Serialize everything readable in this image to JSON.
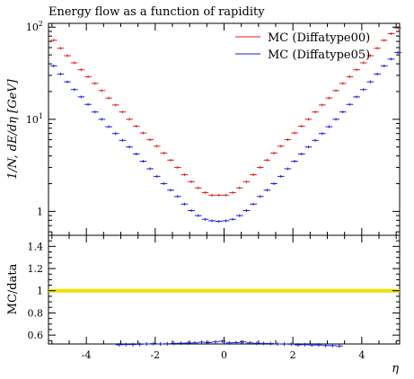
{
  "chart_data": [
    {
      "type": "scatter",
      "title": "Energy flow as a function of rapidity",
      "ylabel": "1/N, dE/dη [GeV]",
      "xlabel": "",
      "yscale": "log",
      "ylim": [
        0.55,
        110
      ],
      "xlim": [
        -5.1,
        5.1
      ],
      "ytick_labels": [
        {
          "base": "10",
          "exp": "2",
          "value": 100
        },
        {
          "base": "10",
          "exp": "1",
          "value": 10
        },
        {
          "base": "1",
          "exp": "",
          "value": 1
        }
      ],
      "legend_position": "top-right",
      "grid": false,
      "series": [
        {
          "name": "MC (Diffatype00)",
          "color": "#e41a1c",
          "x": [
            -4.95,
            -4.75,
            -4.55,
            -4.35,
            -4.15,
            -3.95,
            -3.75,
            -3.55,
            -3.35,
            -3.15,
            -2.95,
            -2.75,
            -2.55,
            -2.35,
            -2.15,
            -1.95,
            -1.75,
            -1.55,
            -1.35,
            -1.15,
            -0.95,
            -0.75,
            -0.55,
            -0.35,
            -0.15,
            0.05,
            0.25,
            0.45,
            0.65,
            0.85,
            1.05,
            1.25,
            1.45,
            1.65,
            1.85,
            2.05,
            2.25,
            2.45,
            2.65,
            2.85,
            3.05,
            3.25,
            3.45,
            3.65,
            3.85,
            4.05,
            4.25,
            4.45,
            4.65,
            4.85,
            5.05
          ],
          "values": [
            72,
            59,
            49,
            41,
            34.5,
            29,
            24.5,
            20.5,
            17,
            14.3,
            12,
            10,
            8.4,
            7.1,
            6,
            5.1,
            4.3,
            3.6,
            3.0,
            2.5,
            2.1,
            1.8,
            1.6,
            1.5,
            1.5,
            1.5,
            1.6,
            1.8,
            2.1,
            2.5,
            3.0,
            3.6,
            4.3,
            5.1,
            6,
            7.1,
            8.4,
            10,
            12,
            14.3,
            17,
            20.5,
            24.5,
            29,
            34.5,
            41,
            49,
            59,
            72,
            85,
            98
          ]
        },
        {
          "name": "MC (Diffatype05)",
          "color": "#1a1ae0",
          "x": [
            -4.95,
            -4.75,
            -4.55,
            -4.35,
            -4.15,
            -3.95,
            -3.75,
            -3.55,
            -3.35,
            -3.15,
            -2.95,
            -2.75,
            -2.55,
            -2.35,
            -2.15,
            -1.95,
            -1.75,
            -1.55,
            -1.35,
            -1.15,
            -0.95,
            -0.75,
            -0.55,
            -0.35,
            -0.15,
            0.05,
            0.25,
            0.45,
            0.65,
            0.85,
            1.05,
            1.25,
            1.45,
            1.65,
            1.85,
            2.05,
            2.25,
            2.45,
            2.65,
            2.85,
            3.05,
            3.25,
            3.45,
            3.65,
            3.85,
            4.05,
            4.25,
            4.45,
            4.65,
            4.85,
            5.05
          ],
          "values": [
            38,
            31,
            25.5,
            21,
            17.5,
            14.5,
            12,
            10,
            8.3,
            7,
            5.9,
            5,
            4.2,
            3.5,
            2.9,
            2.4,
            2.0,
            1.7,
            1.45,
            1.2,
            1.02,
            0.9,
            0.82,
            0.79,
            0.78,
            0.79,
            0.82,
            0.9,
            1.02,
            1.2,
            1.45,
            1.7,
            2.0,
            2.4,
            2.9,
            3.5,
            4.2,
            5,
            5.9,
            7,
            8.3,
            10,
            12,
            14.5,
            17.5,
            21,
            25.5,
            31,
            38,
            45,
            53
          ]
        }
      ]
    },
    {
      "type": "scatter",
      "title": "",
      "ylabel": "MC/data",
      "xlabel": "η",
      "ylim": [
        0.52,
        1.5
      ],
      "xlim": [
        -5.1,
        5.1
      ],
      "yticks": [
        "0.6",
        "0.8",
        "1",
        "1.2",
        "1.4"
      ],
      "yvalues": [
        0.6,
        0.8,
        1.0,
        1.2,
        1.4
      ],
      "xticks": [
        "-4",
        "-2",
        "0",
        "2",
        "4"
      ],
      "xvalues": [
        -4,
        -2,
        0,
        2,
        4
      ],
      "reference_band": {
        "value": 1.0,
        "color": "#f0e000"
      },
      "series": [
        {
          "name": "",
          "color": "#1a1ae0",
          "x": [
            -3.05,
            -2.85,
            -2.65,
            -2.45,
            -2.25,
            -2.05,
            -1.85,
            -1.65,
            -1.45,
            -1.25,
            -1.05,
            -0.85,
            -0.65,
            -0.45,
            -0.25,
            -0.05,
            0.15,
            0.35,
            0.55,
            0.75,
            0.95,
            1.15,
            1.35,
            1.55,
            1.75,
            1.95,
            2.15,
            2.35,
            2.55,
            2.75,
            2.95,
            3.15,
            3.35
          ],
          "values": [
            0.513,
            0.515,
            0.515,
            0.517,
            0.52,
            0.523,
            0.52,
            0.522,
            0.525,
            0.527,
            0.528,
            0.53,
            0.536,
            0.532,
            0.538,
            0.545,
            0.53,
            0.532,
            0.538,
            0.53,
            0.526,
            0.525,
            0.524,
            0.52,
            0.519,
            0.518,
            0.512,
            0.514,
            0.51,
            0.511,
            0.506,
            0.505,
            0.502
          ]
        }
      ]
    }
  ]
}
